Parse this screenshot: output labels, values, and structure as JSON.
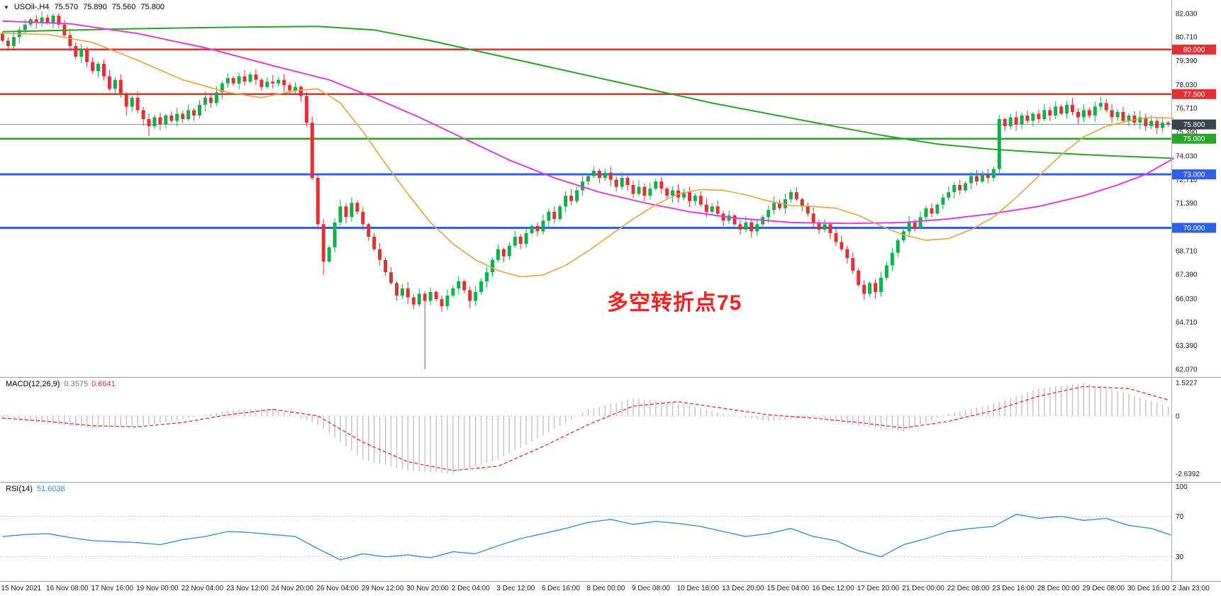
{
  "header": {
    "symbol": "USOil-,H4",
    "open": "75.570",
    "high": "75.890",
    "low": "75.560",
    "close": "75.800"
  },
  "annotation": {
    "text": "多空转折点75",
    "color": "#FB2020"
  },
  "chart_data": [
    {
      "type": "candlestick",
      "title": "USOil-,H4",
      "symbol": "USOil-",
      "timeframe": "H4",
      "current_ohlc": {
        "open": 75.57,
        "high": 75.89,
        "low": 75.56,
        "close": 75.8
      },
      "ylim": [
        62.07,
        82.03
      ],
      "y_ticks": [
        "82.030",
        "80.710",
        "79.390",
        "78.030",
        "76.710",
        "75.390",
        "74.030",
        "72.710",
        "71.390",
        "70.030",
        "68.710",
        "67.390",
        "66.030",
        "64.710",
        "63.390",
        "62.070"
      ],
      "x_labels": [
        "15 Nov 2021",
        "16 Nov 08:00",
        "17 Nov 16:00",
        "19 Nov 00:00",
        "22 Nov 04:00",
        "23 Nov 12:00",
        "24 Nov 20:00",
        "26 Nov 04:00",
        "29 Nov 12:00",
        "30 Nov 20:00",
        "2 Dec 04:00",
        "3 Dec 12:00",
        "6 Dec 16:00",
        "8 Dec 00:00",
        "9 Dec 08:00",
        "10 Dec 16:00",
        "13 Dec 20:00",
        "15 Dec 04:00",
        "16 Dec 12:00",
        "17 Dec 20:00",
        "21 Dec 00:00",
        "22 Dec 08:00",
        "23 Dec 16:00",
        "28 Dec 00:00",
        "29 Dec 08:00",
        "30 Dec 16:00",
        "2 Jan 23:00"
      ],
      "bars_per_label": 8,
      "first_open": 80.9,
      "closes": [
        80.5,
        80.2,
        80.7,
        81.1,
        81.4,
        81.7,
        81.5,
        81.8,
        81.5,
        81.9,
        81.4,
        80.8,
        80.2,
        79.6,
        80.0,
        79.3,
        78.8,
        79.2,
        78.5,
        77.8,
        78.3,
        77.5,
        76.8,
        77.3,
        76.6,
        76.1,
        75.7,
        76.2,
        75.8,
        76.3,
        76.0,
        76.4,
        76.1,
        76.6,
        76.3,
        76.9,
        77.3,
        77.0,
        77.6,
        78.1,
        78.4,
        78.1,
        78.5,
        78.2,
        78.6,
        78.3,
        77.9,
        78.2,
        78.1,
        78.3,
        78.0,
        77.7,
        77.9,
        77.4,
        75.9,
        72.8,
        70.2,
        68.1,
        68.9,
        70.3,
        71.2,
        70.6,
        71.4,
        70.9,
        70.2,
        69.5,
        68.8,
        68.2,
        67.5,
        66.9,
        66.2,
        66.6,
        66.1,
        65.7,
        66.3,
        65.9,
        66.4,
        66.0,
        65.6,
        66.2,
        66.6,
        67.0,
        66.5,
        65.9,
        66.4,
        67.0,
        67.5,
        68.2,
        68.8,
        68.4,
        69.0,
        69.5,
        69.1,
        69.7,
        70.1,
        69.8,
        70.4,
        70.9,
        70.5,
        71.2,
        71.8,
        71.5,
        72.1,
        72.6,
        72.9,
        73.2,
        72.8,
        73.1,
        72.7,
        72.3,
        72.8,
        72.4,
        71.9,
        72.3,
        71.8,
        72.2,
        72.6,
        72.2,
        71.8,
        72.1,
        71.7,
        72.0,
        71.5,
        71.8,
        71.3,
        70.9,
        71.2,
        70.8,
        70.4,
        70.7,
        70.2,
        69.9,
        70.3,
        69.8,
        70.2,
        70.6,
        71.0,
        71.4,
        71.1,
        71.6,
        72.0,
        71.6,
        71.2,
        70.8,
        70.3,
        69.9,
        70.2,
        69.7,
        69.2,
        68.8,
        68.3,
        67.6,
        66.8,
        66.3,
        66.9,
        66.4,
        67.2,
        67.9,
        68.6,
        69.3,
        69.8,
        70.3,
        70.0,
        70.6,
        71.1,
        70.8,
        71.3,
        71.7,
        72.0,
        72.4,
        72.1,
        72.5,
        72.9,
        72.6,
        73.0,
        72.8,
        73.3,
        76.1,
        75.7,
        76.2,
        75.8,
        76.3,
        76.0,
        76.4,
        76.1,
        76.6,
        76.3,
        76.8,
        76.4,
        76.9,
        76.5,
        76.2,
        76.6,
        76.3,
        76.8,
        77.0,
        76.6,
        76.2,
        76.5,
        76.0,
        76.3,
        75.9,
        76.2,
        75.7,
        76.0,
        75.6,
        75.9,
        75.8
      ],
      "wick_overrides": {
        "9": {
          "h": 82.03
        },
        "22": {
          "l": 76.3
        },
        "26": {
          "l": 75.15
        },
        "44": {
          "h": 78.75
        },
        "57": {
          "l": 67.35
        },
        "70": {
          "l": 65.9
        },
        "75": {
          "l": 62.07
        },
        "83": {
          "l": 65.5
        },
        "105": {
          "h": 73.45
        },
        "153": {
          "l": 65.95
        },
        "177": {
          "l": 73.0
        },
        "195": {
          "h": 77.35
        }
      },
      "up_color": "#0FAF4B",
      "down_color": "#E03232",
      "horizontal_lines": [
        {
          "price": 80.0,
          "label": "80.000",
          "color": "#E03232",
          "width": 2.4
        },
        {
          "price": 77.5,
          "label": "77.500",
          "color": "#E03232",
          "width": 2.4
        },
        {
          "price": 75.0,
          "label": "75.000",
          "color": "#28A428",
          "width": 2.4
        },
        {
          "price": 73.0,
          "label": "73.000",
          "color": "#2E62E6",
          "width": 3
        },
        {
          "price": 70.0,
          "label": "70.000",
          "color": "#2E62E6",
          "width": 3
        }
      ],
      "current_price": {
        "price": 75.8,
        "label": "75.800",
        "badge_color": "#3A4350",
        "line_color": "#8298AE"
      },
      "moving_averages": [
        {
          "name": "ma-slow",
          "color": "#28A428",
          "width": 2,
          "points": [
            [
              0,
              81.0
            ],
            [
              20,
              81.15
            ],
            [
              40,
              81.25
            ],
            [
              56,
              81.3
            ],
            [
              66,
              81.1
            ],
            [
              76,
              80.5
            ],
            [
              86,
              79.8
            ],
            [
              96,
              79.1
            ],
            [
              106,
              78.4
            ],
            [
              116,
              77.7
            ],
            [
              126,
              77.0
            ],
            [
              136,
              76.4
            ],
            [
              146,
              75.8
            ],
            [
              156,
              75.2
            ],
            [
              166,
              74.7
            ],
            [
              176,
              74.4
            ],
            [
              186,
              74.2
            ],
            [
              196,
              74.05
            ],
            [
              208,
              73.9
            ]
          ]
        },
        {
          "name": "ma-mid",
          "color": "#DD3FDD",
          "width": 2,
          "points": [
            [
              0,
              81.6
            ],
            [
              12,
              81.45
            ],
            [
              24,
              80.9
            ],
            [
              36,
              80.1
            ],
            [
              48,
              79.1
            ],
            [
              58,
              78.3
            ],
            [
              66,
              77.3
            ],
            [
              74,
              76.2
            ],
            [
              82,
              75.0
            ],
            [
              90,
              73.8
            ],
            [
              98,
              72.8
            ],
            [
              106,
              72.0
            ],
            [
              114,
              71.4
            ],
            [
              122,
              70.9
            ],
            [
              130,
              70.55
            ],
            [
              140,
              70.3
            ],
            [
              150,
              70.25
            ],
            [
              160,
              70.3
            ],
            [
              168,
              70.5
            ],
            [
              176,
              70.8
            ],
            [
              184,
              71.2
            ],
            [
              192,
              71.8
            ],
            [
              198,
              72.4
            ],
            [
              203,
              73.0
            ],
            [
              208,
              73.9
            ]
          ]
        },
        {
          "name": "ma-fast",
          "color": "#E8A33D",
          "width": 1.6,
          "points": [
            [
              0,
              80.9
            ],
            [
              8,
              80.85
            ],
            [
              16,
              80.4
            ],
            [
              24,
              79.4
            ],
            [
              32,
              78.3
            ],
            [
              40,
              77.6
            ],
            [
              46,
              77.3
            ],
            [
              52,
              77.7
            ],
            [
              56,
              77.8
            ],
            [
              60,
              77.0
            ],
            [
              64,
              75.4
            ],
            [
              68,
              73.6
            ],
            [
              72,
              71.9
            ],
            [
              76,
              70.3
            ],
            [
              80,
              69.1
            ],
            [
              84,
              68.2
            ],
            [
              88,
              67.6
            ],
            [
              92,
              67.25
            ],
            [
              96,
              67.35
            ],
            [
              100,
              67.9
            ],
            [
              104,
              68.7
            ],
            [
              108,
              69.6
            ],
            [
              112,
              70.5
            ],
            [
              116,
              71.3
            ],
            [
              120,
              71.9
            ],
            [
              124,
              72.15
            ],
            [
              128,
              72.1
            ],
            [
              132,
              71.85
            ],
            [
              136,
              71.5
            ],
            [
              140,
              71.25
            ],
            [
              144,
              71.2
            ],
            [
              148,
              71.1
            ],
            [
              152,
              70.7
            ],
            [
              156,
              70.1
            ],
            [
              160,
              69.6
            ],
            [
              164,
              69.3
            ],
            [
              168,
              69.4
            ],
            [
              172,
              69.9
            ],
            [
              176,
              70.6
            ],
            [
              180,
              71.7
            ],
            [
              184,
              72.9
            ],
            [
              188,
              74.1
            ],
            [
              192,
              75.1
            ],
            [
              196,
              75.7
            ],
            [
              200,
              76.0
            ],
            [
              204,
              76.2
            ],
            [
              208,
              76.15
            ]
          ]
        }
      ],
      "annotation": {
        "text": "多空转折点75",
        "color": "#FB2020"
      }
    },
    {
      "type": "macd",
      "label": "MACD(12,26,9)",
      "value_main": "0.3575",
      "value_signal": "0.6641",
      "axis_labels": [
        "1.5227",
        "0",
        "-2.6392"
      ],
      "histogram_color": "#C2C2CA",
      "signal_color": "#E03030",
      "histogram_at_labels": [
        -0.15,
        -0.35,
        -0.55,
        -0.5,
        -0.15,
        0.25,
        0.35,
        -0.4,
        -2.0,
        -2.5,
        -2.64,
        -2.0,
        -0.9,
        0.3,
        0.8,
        0.6,
        0.1,
        -0.25,
        -0.05,
        -0.45,
        -0.7,
        0.1,
        0.55,
        1.25,
        1.52,
        1.0,
        0.36
      ],
      "signal_at_labels": [
        -0.1,
        -0.25,
        -0.45,
        -0.5,
        -0.3,
        0.05,
        0.3,
        0.0,
        -1.2,
        -2.1,
        -2.5,
        -2.3,
        -1.4,
        -0.4,
        0.45,
        0.65,
        0.35,
        0.05,
        -0.1,
        -0.3,
        -0.55,
        -0.25,
        0.25,
        0.9,
        1.35,
        1.25,
        0.66
      ]
    },
    {
      "type": "rsi",
      "label": "RSI(14)",
      "value": "51.6038",
      "levels": [
        70,
        30
      ],
      "axis_labels": [
        "100",
        "70",
        "30"
      ],
      "line_color": "#3E8EDE",
      "series_step_bars": 4,
      "series": [
        50,
        52,
        53,
        49,
        46,
        45,
        44,
        42,
        47,
        50,
        55,
        54,
        52,
        50,
        38,
        27,
        33,
        30,
        32,
        29,
        35,
        33,
        41,
        48,
        53,
        58,
        64,
        67,
        62,
        65,
        63,
        60,
        55,
        50,
        53,
        58,
        50,
        46,
        36,
        30,
        42,
        48,
        55,
        58,
        60,
        72,
        68,
        70,
        66,
        68,
        61,
        58,
        51.6
      ]
    }
  ]
}
